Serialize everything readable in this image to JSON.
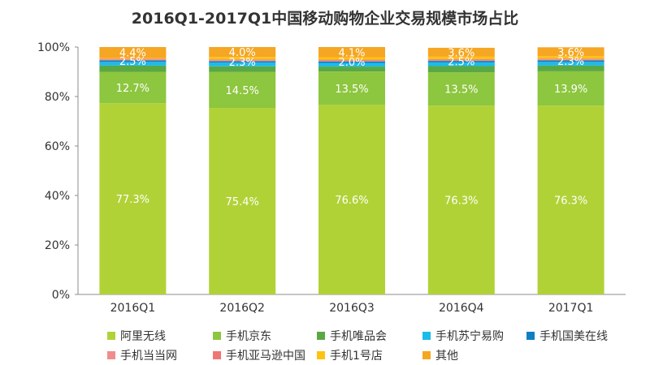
{
  "chart_data": {
    "type": "bar",
    "stacked": true,
    "title": "2016Q1-2017Q1中国移动购物企业交易规模市场占比",
    "categories": [
      "2016Q1",
      "2016Q2",
      "2016Q3",
      "2016Q4",
      "2017Q1"
    ],
    "ylim": [
      0,
      100
    ],
    "yticks": [
      "0%",
      "20%",
      "40%",
      "60%",
      "80%",
      "100%"
    ],
    "ytick_values": [
      0,
      20,
      40,
      60,
      80,
      100
    ],
    "grid": false,
    "legend_position": "bottom",
    "series": [
      {
        "name": "阿里无线",
        "color": "#b1d237",
        "values": [
          77.3,
          75.4,
          76.6,
          76.3,
          76.3
        ],
        "labels": [
          "77.3%",
          "75.4%",
          "76.6%",
          "76.3%",
          "76.3%"
        ]
      },
      {
        "name": "手机京东",
        "color": "#8dc63f",
        "values": [
          12.7,
          14.5,
          13.5,
          13.5,
          13.9
        ],
        "labels": [
          "12.7%",
          "14.5%",
          "13.5%",
          "13.5%",
          "13.9%"
        ]
      },
      {
        "name": "手机唯品会",
        "color": "#5aa844",
        "values": [
          2.5,
          2.3,
          2.0,
          2.5,
          2.3
        ],
        "labels": [
          "2.5%",
          "2.3%",
          "2.0%",
          "2.5%",
          "2.3%"
        ]
      },
      {
        "name": "手机苏宁易购",
        "color": "#1dbbe8",
        "values": [
          1.5,
          1.5,
          1.5,
          1.5,
          1.5
        ],
        "labels": [
          null,
          null,
          null,
          null,
          null
        ]
      },
      {
        "name": "手机国美在线",
        "color": "#0f7fc4",
        "values": [
          0.6,
          0.6,
          0.6,
          0.6,
          0.6
        ],
        "labels": [
          null,
          null,
          null,
          null,
          null
        ]
      },
      {
        "name": "手机当当网",
        "color": "#f28c8c",
        "values": [
          0.4,
          0.4,
          0.4,
          0.4,
          0.4
        ],
        "labels": [
          null,
          null,
          null,
          null,
          null
        ]
      },
      {
        "name": "手机亚马逊中国",
        "color": "#f07575",
        "values": [
          0.3,
          0.3,
          0.3,
          0.3,
          0.3
        ],
        "labels": [
          null,
          null,
          null,
          null,
          null
        ]
      },
      {
        "name": "手机1号店",
        "color": "#ffc20e",
        "values": [
          0.3,
          1.0,
          1.0,
          1.0,
          1.0
        ],
        "labels": [
          null,
          null,
          null,
          null,
          null
        ]
      },
      {
        "name": "其他",
        "color": "#f5a623",
        "values": [
          4.4,
          4.0,
          4.1,
          3.6,
          3.6
        ],
        "labels": [
          "4.4%",
          "4.0%",
          "4.1%",
          "3.6%",
          "3.6%"
        ]
      }
    ]
  }
}
